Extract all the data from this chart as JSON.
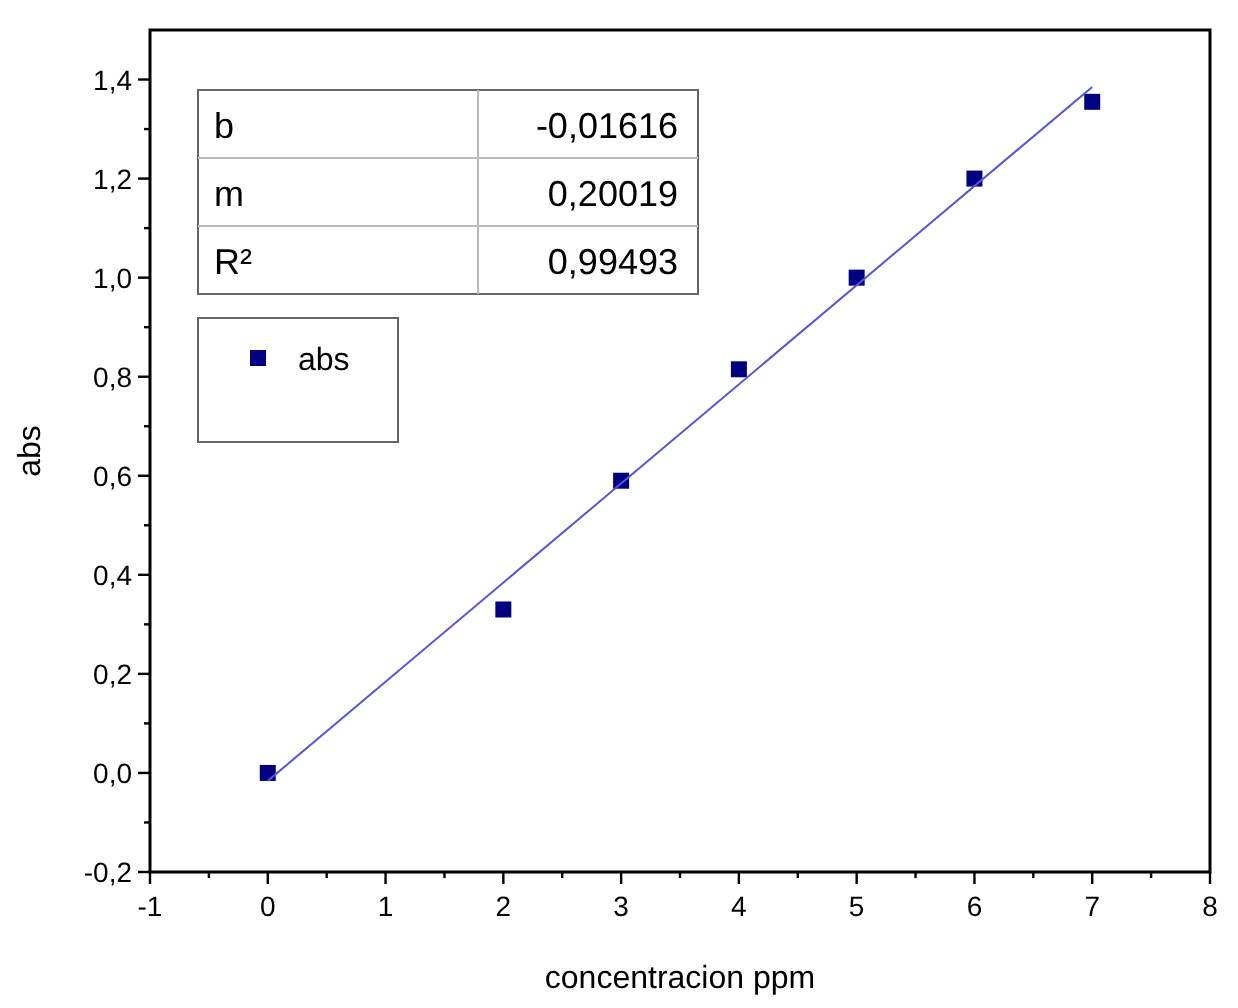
{
  "chart_data": {
    "type": "scatter",
    "xlabel": "concentracion ppm",
    "ylabel": "abs",
    "annotations": [
      "b",
      "-0,01616",
      "m",
      "0,20019",
      "R²",
      "0,99493"
    ],
    "series": [
      {
        "name": "abs",
        "color": "#000080",
        "marker": "square",
        "x": [
          0,
          2,
          3,
          4,
          5,
          6,
          7
        ],
        "values": [
          0,
          0.33,
          0.59,
          0.815,
          1.0,
          1.2,
          1.355
        ]
      },
      {
        "type": "line",
        "color": "#5555dd",
        "marker": "none",
        "x": [
          0,
          7
        ],
        "values": [
          -0.016,
          1.385
        ]
      }
    ],
    "xlim": [
      -1,
      8
    ],
    "ylim": [
      -0.2,
      1.5
    ],
    "xticks": [
      -1,
      {
        "value": -0.5,
        "label": null
      },
      0,
      {
        "value": 0.5,
        "label": null
      },
      1,
      {
        "value": 1.5,
        "label": null
      },
      2,
      {
        "value": 2.5,
        "label": null
      },
      3,
      {
        "value": 3.5,
        "label": null
      },
      4,
      {
        "value": 4.5,
        "label": null
      },
      5,
      {
        "value": 5.5,
        "label": null
      },
      6,
      {
        "value": 6.5,
        "label": null
      },
      7,
      {
        "value": 7.5,
        "label": null
      },
      8
    ],
    "yticks": [
      {
        "value": -0.2,
        "label": "-0,2"
      },
      {
        "value": -0.1,
        "label": null
      },
      {
        "value": 0,
        "label": "0,0"
      },
      {
        "value": 0.1,
        "label": null
      },
      {
        "value": 0.2,
        "label": "0,2"
      },
      {
        "value": 0.3,
        "label": null
      },
      {
        "value": 0.4,
        "label": "0,4"
      },
      {
        "value": 0.5,
        "label": null
      },
      {
        "value": 0.6,
        "label": "0,6"
      },
      {
        "value": 0.7,
        "label": null
      },
      {
        "value": 0.8,
        "label": "0,8"
      },
      {
        "value": 0.9,
        "label": null
      },
      {
        "value": 1.0,
        "label": "1,0"
      },
      {
        "value": 1.1,
        "label": null
      },
      {
        "value": 1.2,
        "label": "1,2"
      },
      {
        "value": 1.3,
        "label": null
      },
      {
        "value": 1.4,
        "label": "1,4"
      }
    ],
    "grid": false,
    "legend": "top left"
  }
}
